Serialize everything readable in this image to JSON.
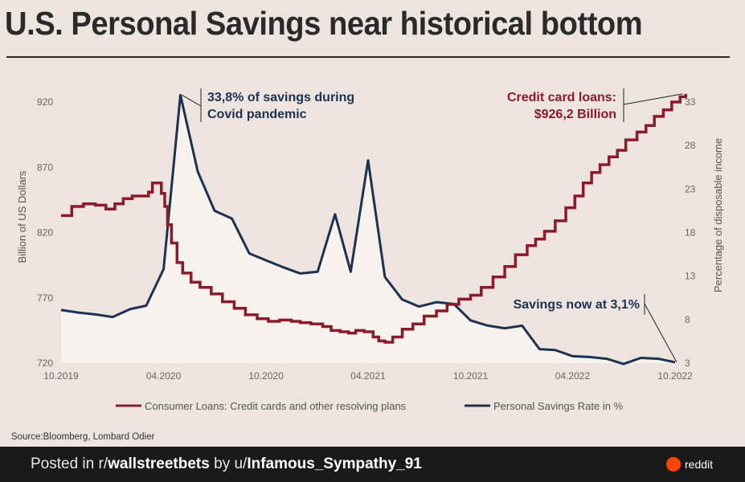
{
  "title": "U.S. Personal Savings near historical bottom",
  "source": "Source:Bloomberg, Lombard Odier",
  "footer": {
    "posted_in": "Posted in r/",
    "subreddit": "wallstreetbets",
    "by": " by u/",
    "user": "Infamous_Sympathy_91",
    "brand": "reddit"
  },
  "colors": {
    "loans": "#8b1a2b",
    "savings": "#1c3250",
    "fill": "#f7f2ee",
    "background": "#ede3df"
  },
  "chart_data": {
    "type": "line",
    "title": "U.S. Personal Savings near historical bottom",
    "xlabel": "",
    "ylabel_left": "Billion of US Dollars",
    "ylabel_right": "Percentage of disposable income",
    "x_ticks": [
      "10.2019",
      "04.2020",
      "10.2020",
      "04.2021",
      "10.2021",
      "04.2022",
      "10.2022"
    ],
    "x_range": [
      "2019-10",
      "2022-10"
    ],
    "y_left": {
      "ticks": [
        720,
        770,
        820,
        870,
        920
      ],
      "range": [
        720,
        940
      ]
    },
    "y_right": {
      "ticks": [
        3,
        8,
        13,
        18,
        23,
        28,
        33
      ],
      "range": [
        3,
        35
      ]
    },
    "legend_position": "bottom",
    "grid": false,
    "series": [
      {
        "name": "Consumer Loans: Credit cards and other resolving plans",
        "axis": "left",
        "style": "step",
        "points": [
          [
            "2019-10-01",
            833
          ],
          [
            "2019-10-20",
            840
          ],
          [
            "2019-11-10",
            842
          ],
          [
            "2019-12-01",
            841
          ],
          [
            "2019-12-20",
            838
          ],
          [
            "2020-01-05",
            842
          ],
          [
            "2020-01-20",
            846
          ],
          [
            "2020-02-05",
            848
          ],
          [
            "2020-02-20",
            848
          ],
          [
            "2020-03-05",
            851
          ],
          [
            "2020-03-12",
            858
          ],
          [
            "2020-03-22",
            858
          ],
          [
            "2020-03-28",
            850
          ],
          [
            "2020-04-03",
            840
          ],
          [
            "2020-04-08",
            826
          ],
          [
            "2020-04-15",
            812
          ],
          [
            "2020-04-25",
            797
          ],
          [
            "2020-05-05",
            789
          ],
          [
            "2020-05-20",
            782
          ],
          [
            "2020-06-05",
            778
          ],
          [
            "2020-06-25",
            773
          ],
          [
            "2020-07-15",
            767
          ],
          [
            "2020-08-05",
            762
          ],
          [
            "2020-08-25",
            757
          ],
          [
            "2020-09-15",
            754
          ],
          [
            "2020-10-05",
            752
          ],
          [
            "2020-10-25",
            753
          ],
          [
            "2020-11-15",
            752
          ],
          [
            "2020-12-01",
            751
          ],
          [
            "2020-12-20",
            750
          ],
          [
            "2021-01-10",
            748
          ],
          [
            "2021-01-25",
            745
          ],
          [
            "2021-02-10",
            744
          ],
          [
            "2021-02-25",
            743
          ],
          [
            "2021-03-10",
            745
          ],
          [
            "2021-03-25",
            744
          ],
          [
            "2021-04-10",
            740
          ],
          [
            "2021-04-20",
            737
          ],
          [
            "2021-05-01",
            736
          ],
          [
            "2021-05-15",
            740
          ],
          [
            "2021-06-01",
            746
          ],
          [
            "2021-06-20",
            750
          ],
          [
            "2021-07-10",
            756
          ],
          [
            "2021-08-01",
            760
          ],
          [
            "2021-08-20",
            765
          ],
          [
            "2021-09-10",
            769
          ],
          [
            "2021-10-01",
            772
          ],
          [
            "2021-10-20",
            778
          ],
          [
            "2021-11-10",
            786
          ],
          [
            "2021-12-01",
            794
          ],
          [
            "2021-12-20",
            803
          ],
          [
            "2022-01-10",
            810
          ],
          [
            "2022-01-25",
            815
          ],
          [
            "2022-02-10",
            821
          ],
          [
            "2022-03-01",
            829
          ],
          [
            "2022-03-20",
            839
          ],
          [
            "2022-04-05",
            848
          ],
          [
            "2022-04-20",
            858
          ],
          [
            "2022-05-05",
            866
          ],
          [
            "2022-05-20",
            872
          ],
          [
            "2022-06-05",
            878
          ],
          [
            "2022-06-20",
            883
          ],
          [
            "2022-07-05",
            891
          ],
          [
            "2022-07-25",
            897
          ],
          [
            "2022-08-10",
            902
          ],
          [
            "2022-08-25",
            909
          ],
          [
            "2022-09-10",
            914
          ],
          [
            "2022-09-25",
            920
          ],
          [
            "2022-10-10",
            924
          ],
          [
            "2022-10-20",
            926.2
          ]
        ]
      },
      {
        "name": "Personal Savings Rate in %",
        "axis": "right",
        "style": "line",
        "points": [
          [
            "2019-10-01",
            9.1
          ],
          [
            "2019-11-01",
            8.8
          ],
          [
            "2019-12-01",
            8.6
          ],
          [
            "2020-01-01",
            8.3
          ],
          [
            "2020-02-01",
            9.2
          ],
          [
            "2020-03-01",
            9.6
          ],
          [
            "2020-04-01",
            13.8
          ],
          [
            "2020-05-01",
            33.8
          ],
          [
            "2020-06-01",
            25.0
          ],
          [
            "2020-07-01",
            20.5
          ],
          [
            "2020-08-01",
            19.6
          ],
          [
            "2020-09-01",
            15.6
          ],
          [
            "2020-10-01",
            14.8
          ],
          [
            "2020-11-01",
            14.0
          ],
          [
            "2020-12-01",
            13.3
          ],
          [
            "2021-01-01",
            13.5
          ],
          [
            "2021-02-01",
            20.1
          ],
          [
            "2021-03-01",
            13.5
          ],
          [
            "2021-04-01",
            26.3
          ],
          [
            "2021-05-01",
            12.9
          ],
          [
            "2021-06-01",
            10.3
          ],
          [
            "2021-07-01",
            9.5
          ],
          [
            "2021-08-01",
            10.0
          ],
          [
            "2021-09-01",
            9.8
          ],
          [
            "2021-10-01",
            7.9
          ],
          [
            "2021-11-01",
            7.3
          ],
          [
            "2021-12-01",
            7.0
          ],
          [
            "2022-01-01",
            7.3
          ],
          [
            "2022-02-01",
            4.6
          ],
          [
            "2022-03-01",
            4.5
          ],
          [
            "2022-04-01",
            3.8
          ],
          [
            "2022-05-01",
            3.7
          ],
          [
            "2022-06-01",
            3.5
          ],
          [
            "2022-07-01",
            2.9
          ],
          [
            "2022-08-01",
            3.6
          ],
          [
            "2022-09-01",
            3.5
          ],
          [
            "2022-10-01",
            3.1
          ]
        ]
      }
    ],
    "annotations": [
      {
        "id": "covid",
        "text": [
          "33,8% of savings during",
          "Covid pandemic"
        ],
        "series": 1,
        "point": [
          "2020-05-01",
          33.8
        ]
      },
      {
        "id": "cards",
        "text": [
          "Credit card loans:",
          "$926,2 Billion"
        ],
        "series": 0,
        "point": [
          "2022-10-20",
          926.2
        ]
      },
      {
        "id": "now",
        "text": [
          "Savings now at 3,1%"
        ],
        "series": 1,
        "point": [
          "2022-10-01",
          3.1
        ]
      }
    ]
  }
}
